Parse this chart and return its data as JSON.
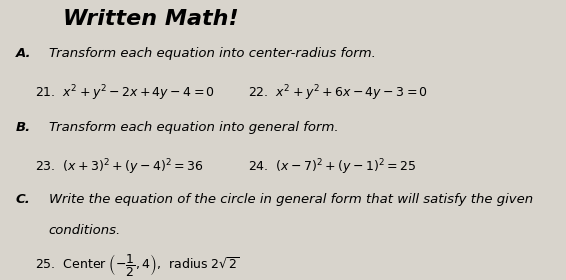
{
  "bg_color": "#d8d4cc",
  "title": "Written Math!",
  "section_A_label": "A.",
  "section_A_text": "Transform each equation into center-radius form.",
  "item21": "21.  $x^2+y^2-2x+4y-4=0$",
  "item22": "22.  $x^2+y^2+6x-4y-3=0$",
  "section_B_label": "B.",
  "section_B_text": "Transform each equation into general form.",
  "item23": "23.  $(x+3)^2+(y-4)^2=36$",
  "item24": "24.  $(x-7)^2+(y-1)^2=25$",
  "section_C_label": "C.",
  "section_C_text": "Write the equation of the circle in general form that will satisfy the given",
  "section_C_text2": "conditions.",
  "item25": "25.  Center $\\left(-\\dfrac{1}{2},4\\right)$,  radius $2\\sqrt{2}$"
}
